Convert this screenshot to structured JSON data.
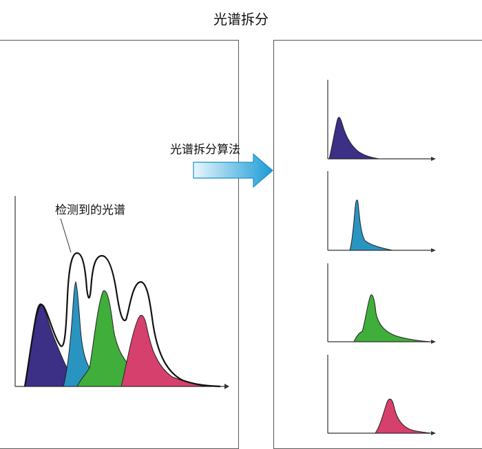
{
  "title": "光谱拆分",
  "arrow_label": "光谱拆分算法",
  "detected_label": "检测到的光谱",
  "colors": {
    "purple": "#3b2f86",
    "blue": "#2a94c1",
    "green": "#3fae3a",
    "red": "#d6406c",
    "arrow_light": "#e8f6fc",
    "arrow_dark": "#1a9bd6"
  },
  "components": [
    {
      "name": "purple",
      "color": "#3b2f86"
    },
    {
      "name": "blue",
      "color": "#2a94c1"
    },
    {
      "name": "green",
      "color": "#3fae3a"
    },
    {
      "name": "red",
      "color": "#d6406c"
    }
  ]
}
